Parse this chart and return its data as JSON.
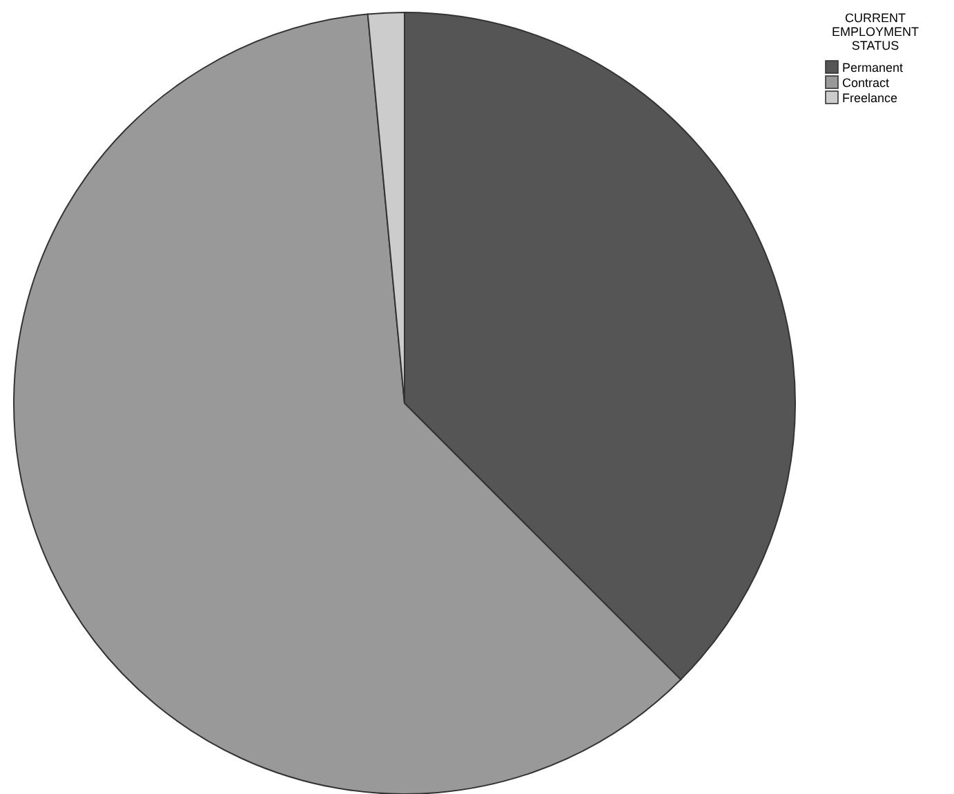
{
  "chart_data": {
    "type": "pie",
    "legend_title": "CURRENT EMPLOYMENT STATUS",
    "categories": [
      "Permanent",
      "Contract",
      "Freelance"
    ],
    "values": [
      37.5,
      61,
      1.5
    ],
    "colors": [
      "#555555",
      "#999999",
      "#cccccc"
    ],
    "legend": "top right"
  }
}
